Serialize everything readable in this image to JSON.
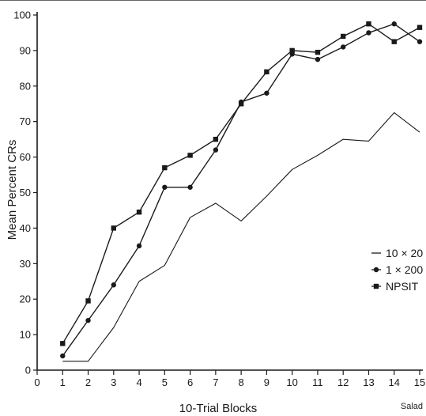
{
  "chart_data": {
    "type": "line",
    "title": "",
    "xlabel": "10-Trial Blocks",
    "ylabel": "Mean Percent CRs",
    "x": [
      1,
      2,
      3,
      4,
      5,
      6,
      7,
      8,
      9,
      10,
      11,
      12,
      13,
      14,
      15
    ],
    "x_ticks": [
      "0",
      "1",
      "2",
      "3",
      "4",
      "5",
      "6",
      "7",
      "8",
      "9",
      "10",
      "11",
      "12",
      "13",
      "14",
      "15"
    ],
    "y_ticks": [
      "0",
      "10",
      "20",
      "30",
      "40",
      "50",
      "60",
      "70",
      "80",
      "90",
      "100"
    ],
    "xlim": [
      0,
      15
    ],
    "ylim": [
      0,
      100
    ],
    "grid": false,
    "legend_position": "right",
    "series": [
      {
        "name": "10 × 20",
        "marker": "none",
        "values": [
          2.5,
          2.5,
          12,
          25,
          29.5,
          43,
          47,
          42,
          49,
          56.5,
          60.5,
          65,
          64.5,
          72.5,
          67
        ]
      },
      {
        "name": "1 × 200",
        "marker": "circle",
        "values": [
          4,
          14,
          24,
          35,
          51.5,
          51.5,
          62,
          75.5,
          78,
          89,
          87.5,
          91,
          95,
          97.5,
          92.5
        ]
      },
      {
        "name": "NPSIT",
        "marker": "square",
        "values": [
          7.5,
          19.5,
          40,
          44.5,
          57,
          60.5,
          65,
          75,
          84,
          90,
          89.5,
          94,
          97.5,
          92.5,
          96.5
        ]
      }
    ]
  },
  "watermark": "Salad",
  "colors": {
    "line": "#1a1a1a",
    "background": "#ffffff"
  }
}
